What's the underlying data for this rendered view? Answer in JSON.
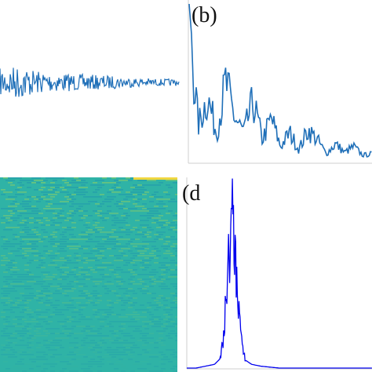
{
  "panels": {
    "a": {
      "label": ""
    },
    "b": {
      "label": "(b)"
    },
    "c": {
      "label": ""
    },
    "d": {
      "label": "(d"
    }
  },
  "colors": {
    "signal": "#1f6fb8",
    "spectrum": "#0000ee",
    "heatmap_base": "#2fb3a6",
    "heatmap_dark": "#1c8fb0",
    "heatmap_light": "#9dd25a",
    "axis": "#cfcfcf"
  },
  "chart_data": [
    {
      "type": "line",
      "panel": "a",
      "title": "",
      "xlabel": "",
      "ylabel": "",
      "grid": false,
      "description_values": {
        "x": [
          0,
          10,
          20,
          30,
          40,
          50,
          60,
          70,
          80,
          90,
          100
        ],
        "amplitude_envelope": [
          0.8,
          1.0,
          0.7,
          0.55,
          0.5,
          0.45,
          0.4,
          0.3,
          0.25,
          0.2,
          0.2
        ]
      }
    },
    {
      "type": "line",
      "panel": "b",
      "title": "",
      "xlabel": "",
      "ylabel": "",
      "grid": false,
      "x": [
        0,
        5,
        10,
        15,
        20,
        25,
        30,
        35,
        40,
        45,
        50,
        55,
        60,
        65,
        70,
        75,
        80,
        85,
        90,
        95,
        100
      ],
      "values": [
        1.0,
        0.25,
        0.45,
        0.2,
        0.55,
        0.3,
        0.2,
        0.42,
        0.15,
        0.3,
        0.1,
        0.2,
        0.08,
        0.22,
        0.15,
        0.05,
        0.12,
        0.06,
        0.1,
        0.04,
        0.05
      ]
    },
    {
      "type": "heatmap",
      "panel": "c",
      "title": "",
      "xlabel": "",
      "ylabel": ""
    },
    {
      "type": "line",
      "panel": "d",
      "title": "",
      "xlabel": "",
      "ylabel": "",
      "grid": false,
      "x": [
        0,
        5,
        10,
        15,
        18,
        20,
        22,
        24,
        25,
        26,
        28,
        30,
        32,
        35,
        40,
        50,
        60,
        70,
        80,
        90,
        100
      ],
      "values": [
        0.0,
        0.0,
        0.01,
        0.02,
        0.05,
        0.2,
        0.6,
        0.85,
        1.0,
        0.7,
        0.4,
        0.12,
        0.04,
        0.02,
        0.01,
        0.0,
        0.0,
        0.0,
        0.0,
        0.0,
        0.0
      ]
    }
  ]
}
